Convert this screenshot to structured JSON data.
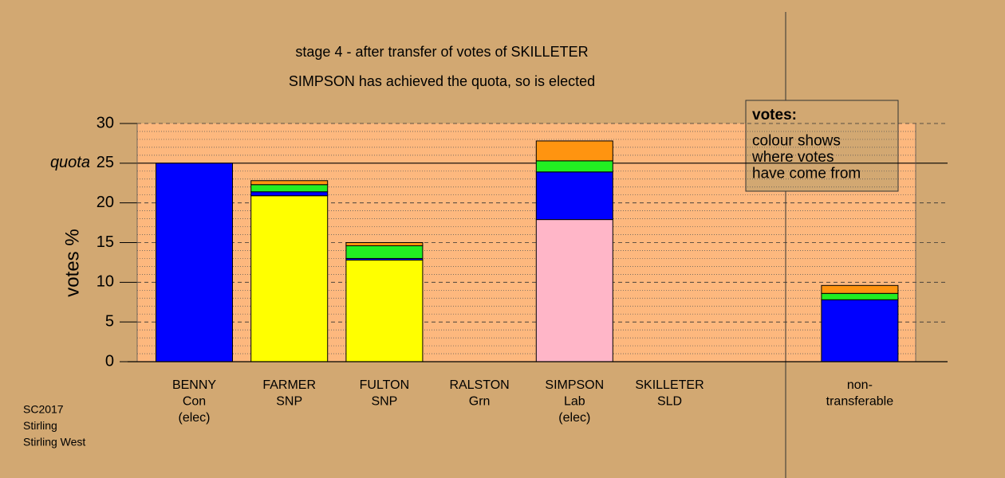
{
  "chart_data": {
    "type": "stacked_bar",
    "title": "stage 4 - after transfer of votes of SKILLETER",
    "subtitle": "SIMPSON has achieved the quota, so is elected",
    "ylabel": "votes %",
    "categories": [
      [
        "BENNY",
        "Con",
        "(elec)"
      ],
      [
        "FARMER",
        "SNP"
      ],
      [
        "FULTON",
        "SNP"
      ],
      [
        "RALSTON",
        "Grn"
      ],
      [
        "SIMPSON",
        "Lab",
        "(elec)"
      ],
      [
        "SKILLETER",
        "SLD"
      ],
      null,
      [
        "non-",
        "transferable"
      ]
    ],
    "series": [
      {
        "color": "#ffff00",
        "values": [
          0,
          20.9,
          12.8,
          0,
          0,
          0,
          null,
          0
        ]
      },
      {
        "color": "#ffb6c8",
        "values": [
          0,
          0,
          0,
          0,
          17.9,
          0,
          null,
          0
        ]
      },
      {
        "color": "#0000ff",
        "values": [
          25,
          0.5,
          0.2,
          0,
          6.0,
          0,
          null,
          7.8
        ]
      },
      {
        "color": "#22ee22",
        "values": [
          0,
          0.9,
          1.6,
          0,
          1.4,
          0,
          null,
          0.8
        ]
      },
      {
        "color": "#ff9410",
        "values": [
          0,
          0.5,
          0.4,
          0,
          2.5,
          0,
          null,
          1.0
        ]
      }
    ],
    "ylim": [
      0,
      30
    ],
    "yticks": [
      0,
      5,
      10,
      15,
      20,
      25,
      30
    ],
    "minor_yticks": [
      1,
      2,
      3,
      4,
      6,
      7,
      8,
      9,
      11,
      12,
      13,
      14,
      16,
      17,
      18,
      19,
      21,
      22,
      23,
      24,
      26,
      27,
      28,
      29
    ],
    "quota": {
      "value": 25,
      "label": "quota"
    },
    "legend_box": [
      "votes:",
      "colour shows",
      "where votes",
      "have come from"
    ],
    "footer": [
      "SC2017",
      "Stirling",
      "Stirling West"
    ]
  }
}
